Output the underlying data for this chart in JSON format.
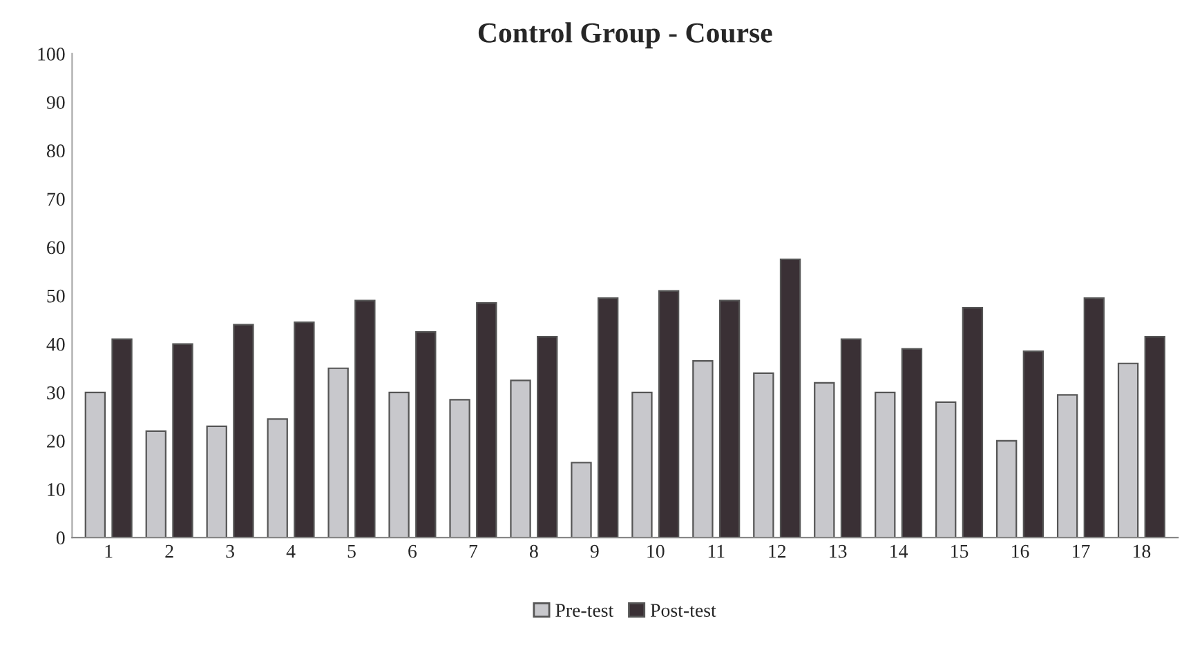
{
  "chart_data": {
    "type": "bar",
    "title": "Control Group - Course",
    "categories": [
      "1",
      "2",
      "3",
      "4",
      "5",
      "6",
      "7",
      "8",
      "9",
      "10",
      "11",
      "12",
      "13",
      "14",
      "15",
      "16",
      "17",
      "18"
    ],
    "series": [
      {
        "name": "Pre-test",
        "color": "#c8c8cc",
        "values": [
          30,
          22,
          23,
          24.5,
          35,
          30,
          28.5,
          32.5,
          15.5,
          30,
          36.5,
          34,
          32,
          30,
          28,
          20,
          29.5,
          36
        ]
      },
      {
        "name": "Post-test",
        "color": "#3a3035",
        "values": [
          41,
          40,
          44,
          44.5,
          49,
          42.5,
          48.5,
          41.5,
          49.5,
          51,
          49,
          57.5,
          41,
          39,
          47.5,
          38.5,
          49.5,
          41.5
        ]
      }
    ],
    "ylim": [
      0,
      100
    ],
    "yticks": [
      0,
      10,
      20,
      30,
      40,
      50,
      60,
      70,
      80,
      90,
      100
    ],
    "grid": false,
    "legend": "bottom"
  }
}
